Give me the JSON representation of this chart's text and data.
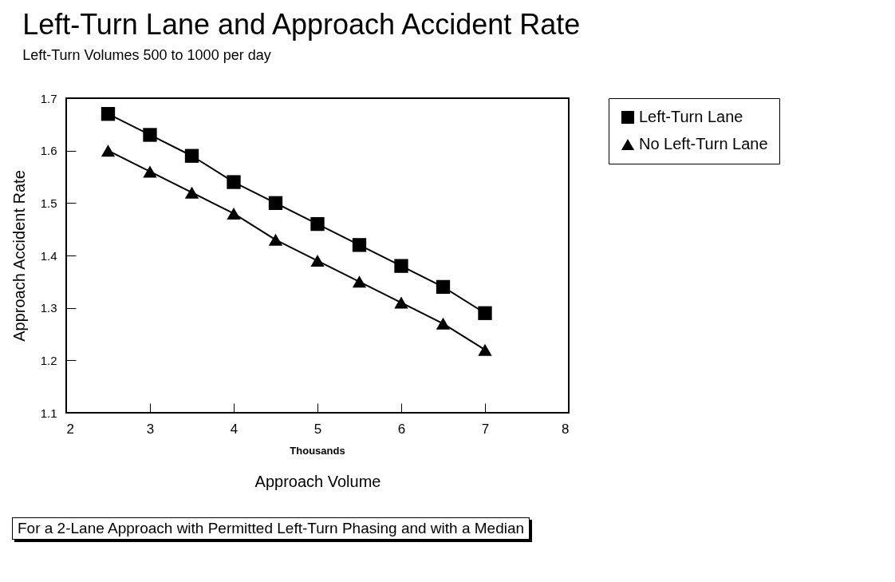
{
  "chart_data": {
    "type": "line",
    "title": "Left-Turn Lane and Approach Accident Rate",
    "subtitle": "Left-Turn Volumes 500 to 1000 per day",
    "xlabel": "Approach Volume",
    "ylabel": "Approach Accident Rate",
    "x": [
      2.5,
      3,
      3.5,
      4,
      4.5,
      5,
      5.5,
      6,
      6.5,
      7
    ],
    "series": [
      {
        "name": "Left-Turn Lane",
        "color": "#000000",
        "marker": "square",
        "values": [
          1.67,
          1.63,
          1.59,
          1.54,
          1.5,
          1.46,
          1.42,
          1.38,
          1.34,
          1.29
        ]
      },
      {
        "name": "No Left-Turn Lane",
        "color": "#000000",
        "marker": "triangle",
        "values": [
          1.6,
          1.56,
          1.52,
          1.48,
          1.43,
          1.39,
          1.35,
          1.31,
          1.27,
          1.22
        ]
      }
    ],
    "xlim": [
      2,
      8
    ],
    "xticks": [
      2,
      3,
      4,
      5,
      6,
      7,
      8
    ],
    "ylim": [
      1.1,
      1.7
    ],
    "yticks": [
      1.1,
      1.2,
      1.3,
      1.4,
      1.5,
      1.6,
      1.7
    ],
    "grid": false,
    "legend": "right",
    "line_style": "solid",
    "annotations": [
      "Thousands",
      "For a 2-Lane Approach with Permitted Left-Turn Phasing and with a Median"
    ]
  }
}
